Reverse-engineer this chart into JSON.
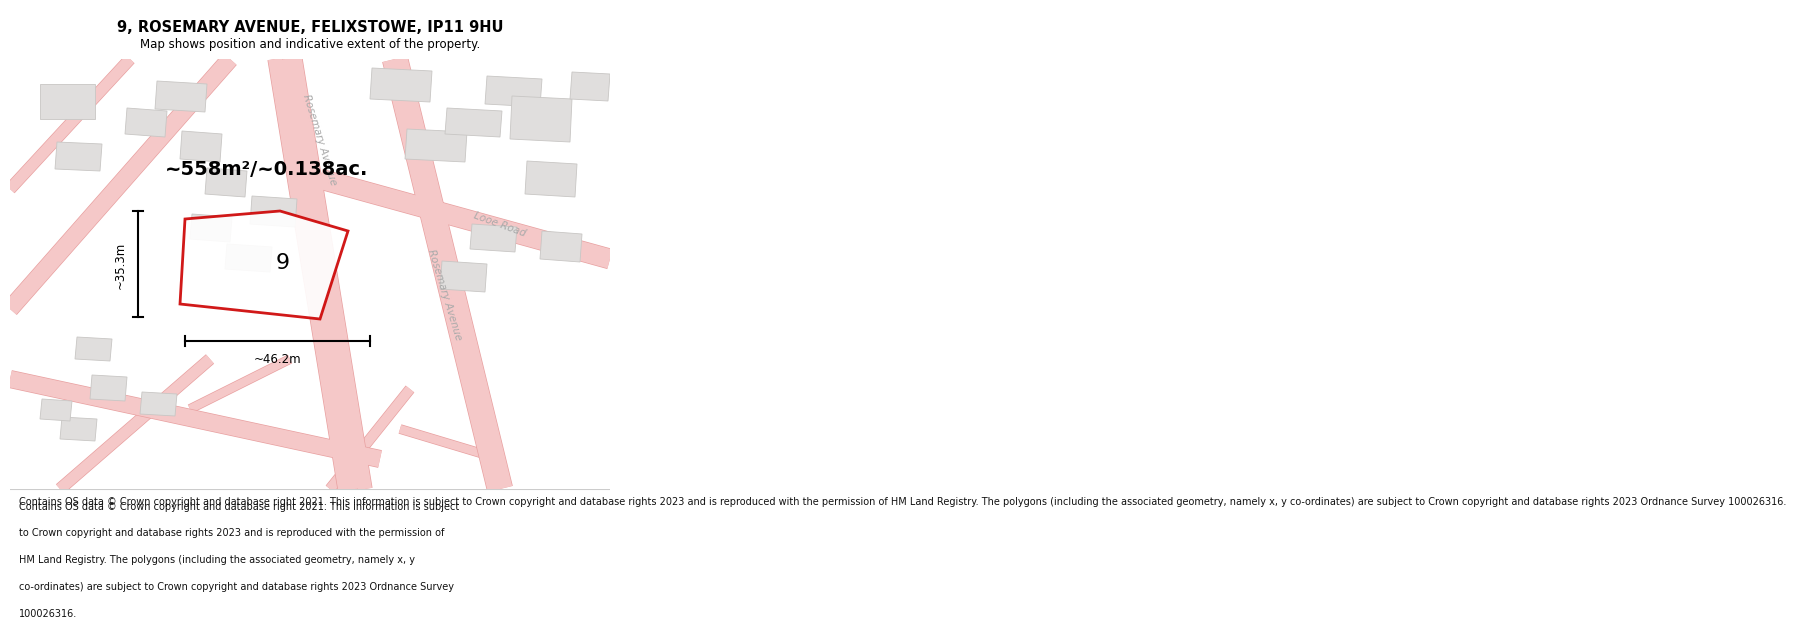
{
  "title": "9, ROSEMARY AVENUE, FELIXSTOWE, IP11 9HU",
  "subtitle": "Map shows position and indicative extent of the property.",
  "footer": "Contains OS data © Crown copyright and database right 2021. This information is subject to Crown copyright and database rights 2023 and is reproduced with the permission of HM Land Registry. The polygons (including the associated geometry, namely x, y co-ordinates) are subject to Crown copyright and database rights 2023 Ordnance Survey 100026316.",
  "area_text": "~558m²/~0.138ac.",
  "map_bg": "#ffffff",
  "road_color": "#f5c8c8",
  "road_edge_color": "#e8a0a0",
  "building_face": "#e0dedd",
  "building_edge": "#c8c6c4",
  "highlight_color": "#cc0000",
  "width_label": "~46.2m",
  "height_label": "~35.3m",
  "property_number": "9",
  "road_label_right": "Rosemary Avenue",
  "road_label_top": "Rosemary Avenue",
  "road_label_looe": "Looe Road"
}
